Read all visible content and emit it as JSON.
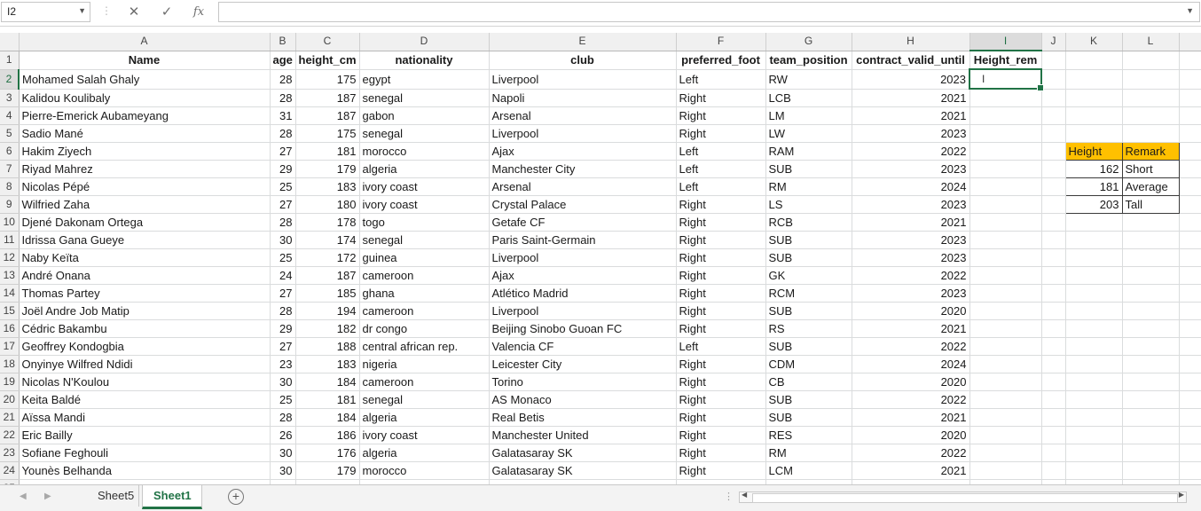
{
  "formula_bar": {
    "name_box": "I2",
    "formula": ""
  },
  "columns": [
    {
      "letter": "A",
      "width": 283
    },
    {
      "letter": "B",
      "width": 29
    },
    {
      "letter": "C",
      "width": 72
    },
    {
      "letter": "D",
      "width": 146
    },
    {
      "letter": "E",
      "width": 211
    },
    {
      "letter": "F",
      "width": 101
    },
    {
      "letter": "G",
      "width": 97
    },
    {
      "letter": "H",
      "width": 133
    },
    {
      "letter": "I",
      "width": 81
    },
    {
      "letter": "J",
      "width": 27
    },
    {
      "letter": "K",
      "width": 64
    },
    {
      "letter": "L",
      "width": 64
    },
    {
      "letter": "M",
      "width": 64
    }
  ],
  "headers": [
    "Name",
    "age",
    "height_cm",
    "nationality",
    "club",
    "preferred_foot",
    "team_position",
    "contract_valid_until",
    "Height_rem"
  ],
  "rows": [
    [
      "Mohamed  Salah Ghaly",
      "28",
      "175",
      "egypt",
      "Liverpool",
      "Left",
      "RW",
      "2023"
    ],
    [
      "Kalidou Koulibaly",
      "28",
      "187",
      "senegal",
      "Napoli",
      "Right",
      "LCB",
      "2021"
    ],
    [
      "Pierre-Emerick Aubameyang",
      "31",
      "187",
      "gabon",
      "Arsenal",
      "Right",
      "LM",
      "2021"
    ],
    [
      "Sadio Mané",
      "28",
      "175",
      "senegal",
      "Liverpool",
      "Right",
      "LW",
      "2023"
    ],
    [
      "Hakim Ziyech",
      "27",
      "181",
      "morocco",
      "Ajax",
      "Left",
      "RAM",
      "2022"
    ],
    [
      "Riyad Mahrez",
      "29",
      "179",
      "algeria",
      "Manchester City",
      "Left",
      "SUB",
      "2023"
    ],
    [
      "Nicolas Pépé",
      "25",
      "183",
      "ivory coast",
      "Arsenal",
      "Left",
      "RM",
      "2024"
    ],
    [
      "Wilfried Zaha",
      "27",
      "180",
      "ivory coast",
      "Crystal Palace",
      "Right",
      "LS",
      "2023"
    ],
    [
      "Djené Dakonam Ortega",
      "28",
      "178",
      "togo",
      "Getafe CF",
      "Right",
      "RCB",
      "2021"
    ],
    [
      "Idrissa Gana Gueye",
      "30",
      "174",
      "senegal",
      "Paris Saint-Germain",
      "Right",
      "SUB",
      "2023"
    ],
    [
      "Naby Keïta",
      "25",
      "172",
      "guinea",
      "Liverpool",
      "Right",
      "SUB",
      "2023"
    ],
    [
      "André Onana",
      "24",
      "187",
      "cameroon",
      "Ajax",
      "Right",
      "GK",
      "2022"
    ],
    [
      "Thomas Partey",
      "27",
      "185",
      "ghana",
      "Atlético Madrid",
      "Right",
      "RCM",
      "2023"
    ],
    [
      "Joël Andre Job Matip",
      "28",
      "194",
      "cameroon",
      "Liverpool",
      "Right",
      "SUB",
      "2020"
    ],
    [
      "Cédric Bakambu",
      "29",
      "182",
      "dr congo",
      "Beijing Sinobo Guoan FC",
      "Right",
      "RS",
      "2021"
    ],
    [
      "Geoffrey Kondogbia",
      "27",
      "188",
      "central african rep.",
      "Valencia CF",
      "Left",
      "SUB",
      "2022"
    ],
    [
      "Onyinye Wilfred Ndidi",
      "23",
      "183",
      "nigeria",
      "Leicester City",
      "Right",
      "CDM",
      "2024"
    ],
    [
      "Nicolas N'Koulou",
      "30",
      "184",
      "cameroon",
      "Torino",
      "Right",
      "CB",
      "2020"
    ],
    [
      "Keita Baldé",
      "25",
      "181",
      "senegal",
      "AS Monaco",
      "Right",
      "SUB",
      "2022"
    ],
    [
      "Aïssa Mandi",
      "28",
      "184",
      "algeria",
      "Real Betis",
      "Right",
      "SUB",
      "2021"
    ],
    [
      "Eric Bailly",
      "26",
      "186",
      "ivory coast",
      "Manchester United",
      "Right",
      "RES",
      "2020"
    ],
    [
      "Sofiane Feghouli",
      "30",
      "176",
      "algeria",
      "Galatasaray SK",
      "Right",
      "RM",
      "2022"
    ],
    [
      "Younès Belhanda",
      "30",
      "179",
      "morocco",
      "Galatasaray SK",
      "Right",
      "LCM",
      "2021"
    ],
    [
      "",
      "",
      "",
      "",
      "",
      "",
      "",
      ""
    ]
  ],
  "lookup_table": {
    "headers": [
      "Height",
      "Remark"
    ],
    "rows": [
      [
        "162",
        "Short"
      ],
      [
        "181",
        "Average"
      ],
      [
        "203",
        "Tall"
      ]
    ]
  },
  "sheet_tabs": [
    {
      "name": "Sheet5",
      "active": false
    },
    {
      "name": "Sheet1",
      "active": true
    }
  ],
  "colors": {
    "selection": "#217346",
    "lookup_header_fill": "#ffc000",
    "gridline": "#dadcdd"
  },
  "icons": {
    "cancel": "close-icon",
    "enter": "check-icon",
    "insert_function": "fx-icon",
    "add_sheet": "plus-circle-icon"
  }
}
